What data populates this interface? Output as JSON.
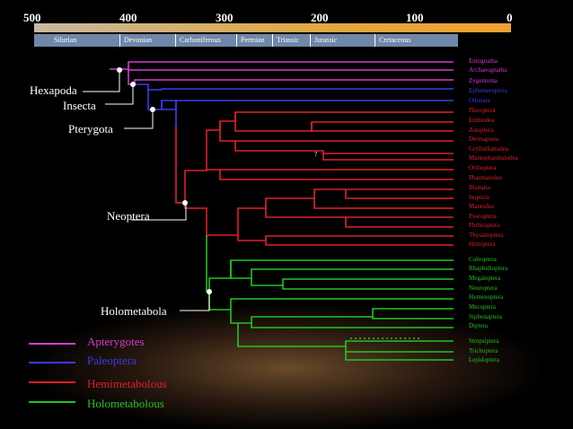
{
  "timeline": {
    "ticks": [
      "500",
      "400",
      "300",
      "200",
      "100",
      "0"
    ],
    "periods": [
      "Silurian",
      "Devonian",
      "Carboniferous",
      "Permian",
      "Triassic",
      "Jurassic",
      "Cretaceous"
    ]
  },
  "clades": {
    "hexapoda": "Hexapoda",
    "insecta": "Insecta",
    "pterygota": "Pterygota",
    "neoptera": "Neoptera",
    "holometabola": "Holometabola"
  },
  "uncertain_mark": "?",
  "taxa": [
    {
      "name": "Entognatha",
      "group": "apterygote"
    },
    {
      "name": "Archaeognatha",
      "group": "apterygote"
    },
    {
      "name": "Zygentoma",
      "group": "apterygote"
    },
    {
      "name": "Ephemeroptera",
      "group": "paleoptera"
    },
    {
      "name": "Odonata",
      "group": "paleoptera"
    },
    {
      "name": "Plecoptera",
      "group": "hemi"
    },
    {
      "name": "Embiodea",
      "group": "hemi"
    },
    {
      "name": "Zoraptera",
      "group": "hemi"
    },
    {
      "name": "Dermaptera",
      "group": "hemi"
    },
    {
      "name": "Grylloblattodea",
      "group": "hemi"
    },
    {
      "name": "Mantophasmatodea",
      "group": "hemi"
    },
    {
      "name": "Orthoptera",
      "group": "hemi"
    },
    {
      "name": "Phasmatodea",
      "group": "hemi"
    },
    {
      "name": "Blattaria",
      "group": "hemi"
    },
    {
      "name": "Isoptera",
      "group": "hemi"
    },
    {
      "name": "Mantodea",
      "group": "hemi"
    },
    {
      "name": "Psocoptera",
      "group": "hemi"
    },
    {
      "name": "Phthiraptera",
      "group": "hemi"
    },
    {
      "name": "Thysanoptera",
      "group": "hemi"
    },
    {
      "name": "Hemiptera",
      "group": "hemi"
    },
    {
      "name": "Coleoptera",
      "group": "holo"
    },
    {
      "name": "Rhaphidioptera",
      "group": "holo"
    },
    {
      "name": "Megaloptera",
      "group": "holo"
    },
    {
      "name": "Neuroptera",
      "group": "holo"
    },
    {
      "name": "Hymenoptera",
      "group": "holo"
    },
    {
      "name": "Mecoptera",
      "group": "holo"
    },
    {
      "name": "Siphonaptera",
      "group": "holo"
    },
    {
      "name": "Diptera",
      "group": "holo"
    },
    {
      "name": "Strepsiptera",
      "group": "holo"
    },
    {
      "name": "Trichoptera",
      "group": "holo"
    },
    {
      "name": "Lepidoptera",
      "group": "holo"
    }
  ],
  "legend": [
    {
      "label": "Apterygotes",
      "color": "#d23cd2"
    },
    {
      "label": "Paleoptera",
      "color": "#3b3bea"
    },
    {
      "label": "Hemimetabolous",
      "color": "#e0202a"
    },
    {
      "label": "Holometabolous",
      "color": "#22c422"
    }
  ],
  "colors": {
    "apterygote": "#d23cd2",
    "paleoptera": "#3b3bea",
    "hemi": "#e0202a",
    "holo": "#22c422",
    "timeline": "#e8a33a",
    "period_box": "#6f87a8"
  }
}
